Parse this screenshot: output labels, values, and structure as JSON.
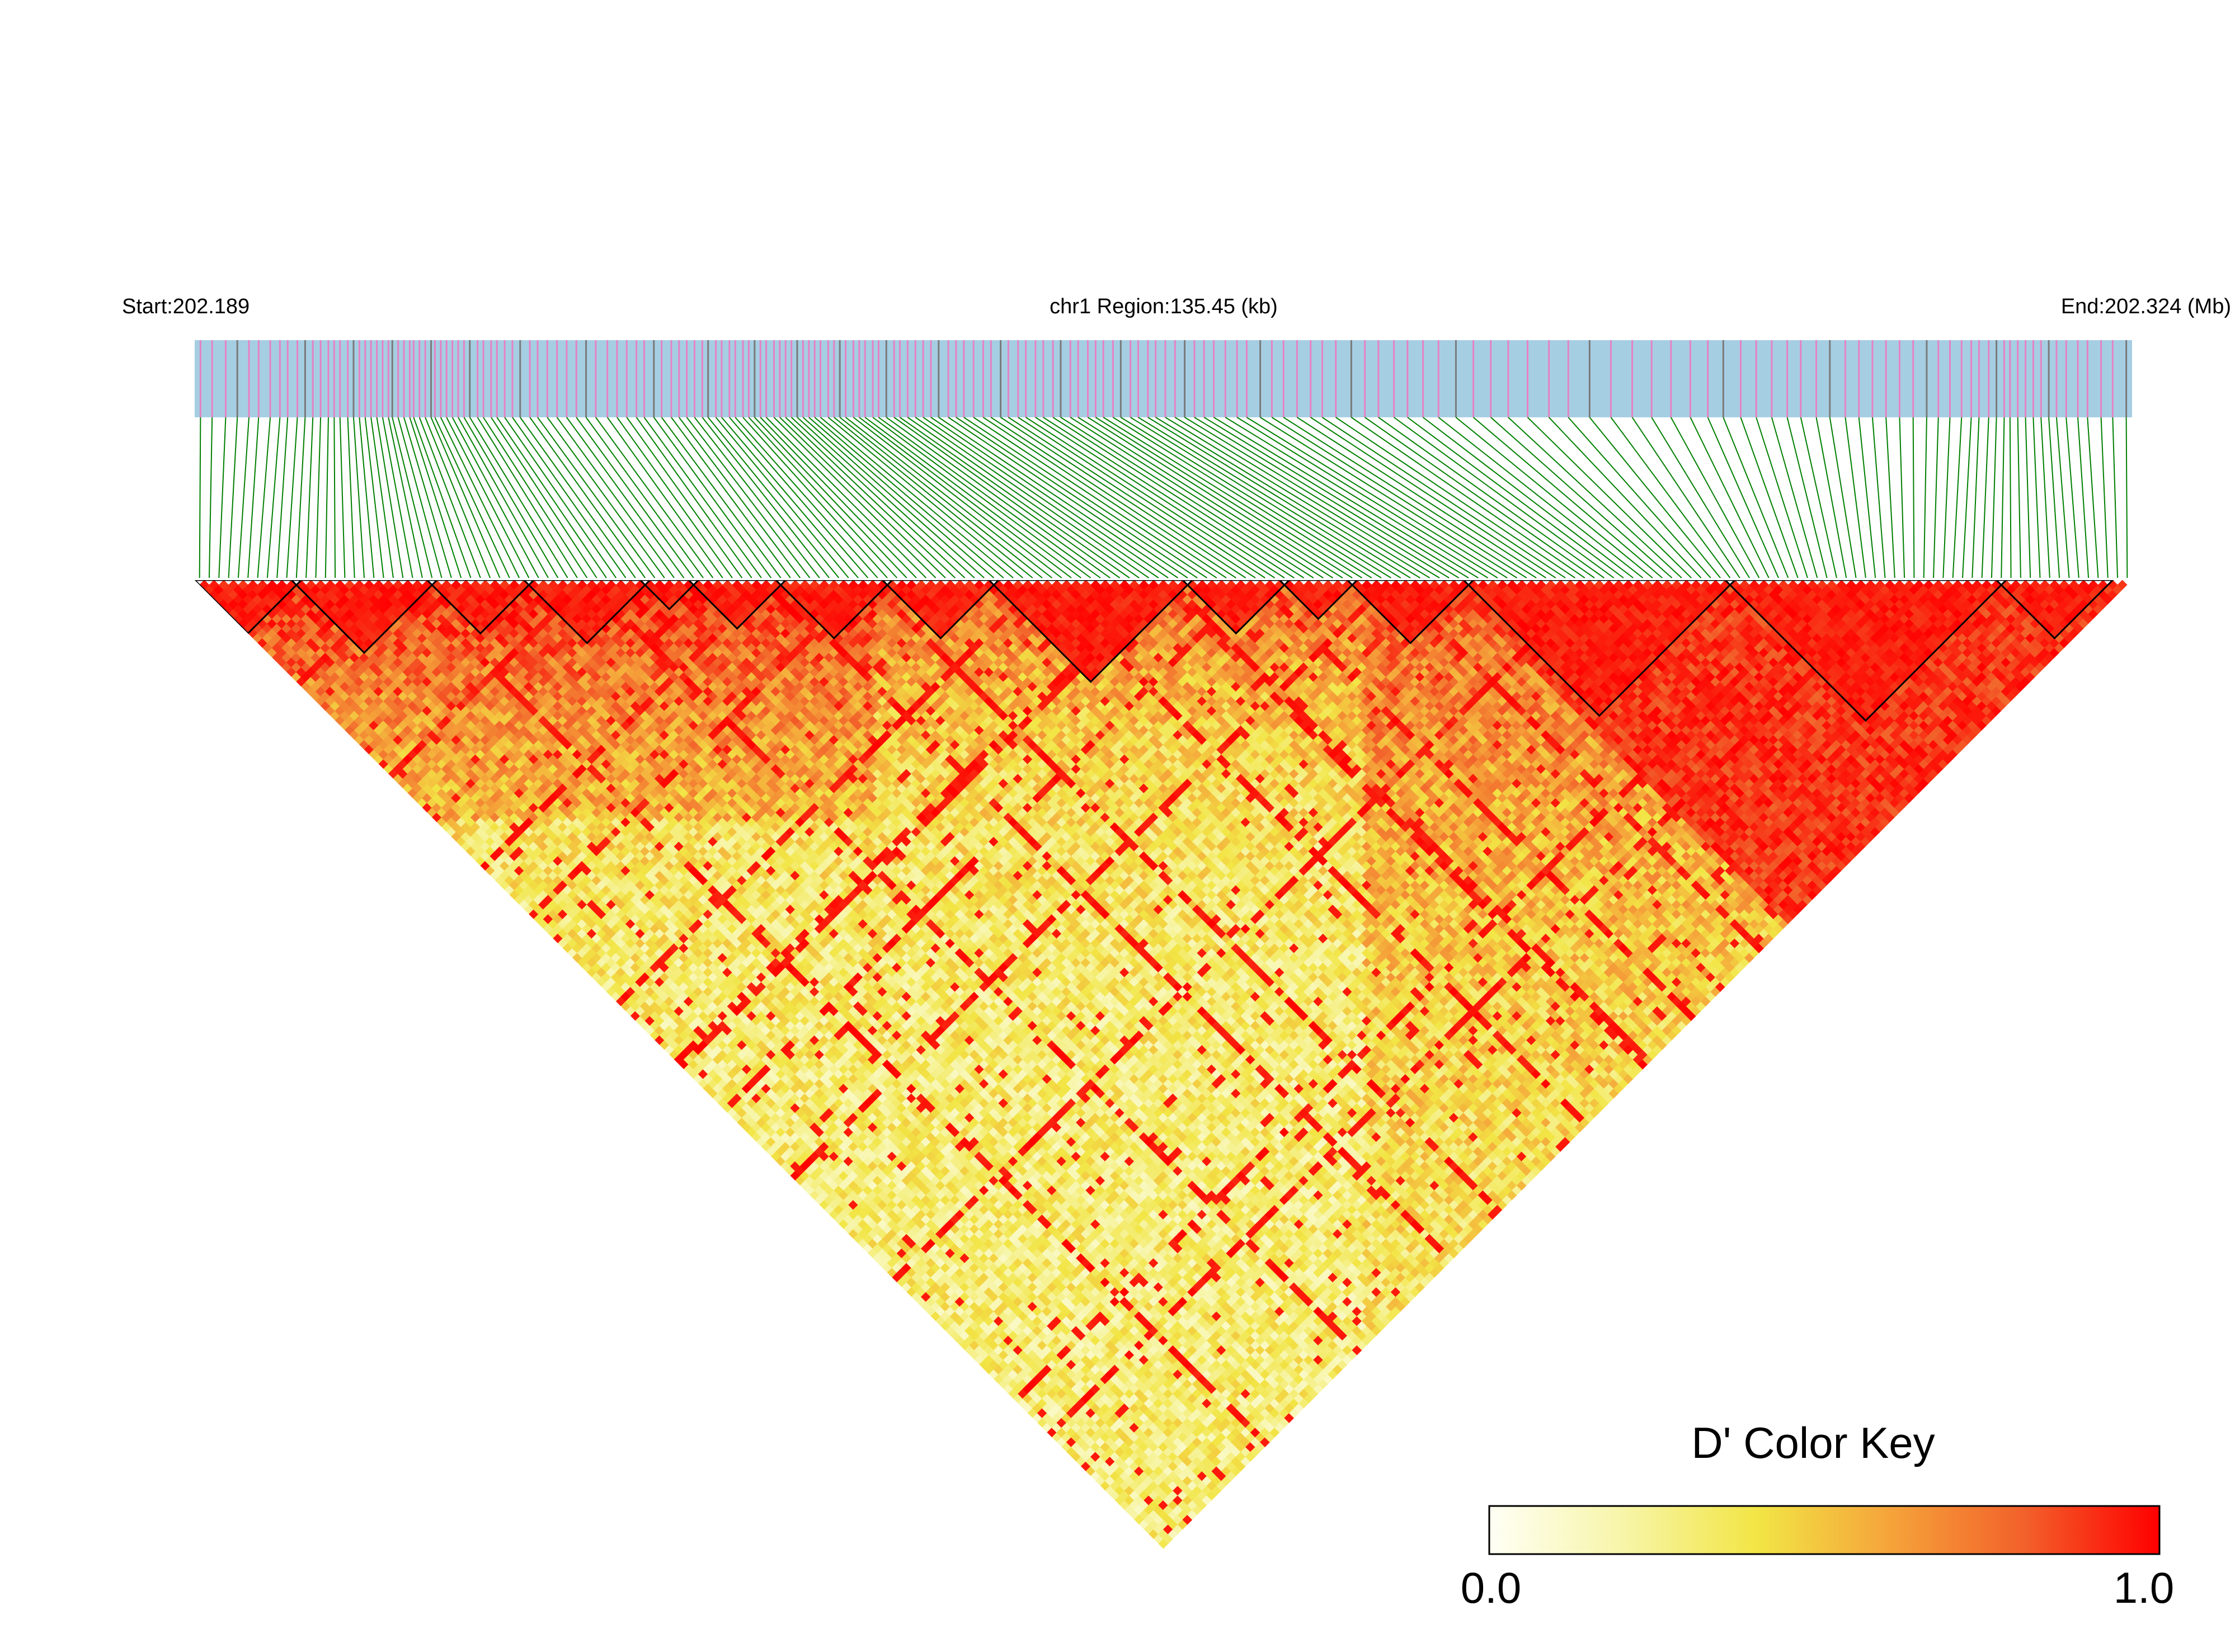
{
  "header": {
    "start_label": "Start:202.189",
    "region_label": "chr1 Region:135.45 (kb)",
    "end_label": "End:202.324 (Mb)"
  },
  "color_key": {
    "title": "D' Color Key",
    "min_label": "0.0",
    "max_label": "1.0",
    "stops": [
      "#fffff5",
      "#f7f5a8",
      "#f2e545",
      "#f5a33a",
      "#f2602a",
      "#ff0000"
    ]
  },
  "colors": {
    "track_background": "#a6cee3",
    "snp_tick_pink": "#e582c4",
    "snp_tick_gray": "#7a7a7a",
    "connector_lines": "#008000",
    "block_outline": "#000000"
  },
  "chart_data": {
    "type": "heatmap",
    "title": "",
    "chromosome": "chr1",
    "region_start_mb": 202.189,
    "region_end_mb": 202.324,
    "region_length_kb": 135.45,
    "color_scale": {
      "metric": "D'",
      "min": 0.0,
      "max": 1.0
    },
    "ld_blocks_fraction_of_region": [
      [
        0.0,
        0.048
      ],
      [
        0.048,
        0.122
      ],
      [
        0.122,
        0.17
      ],
      [
        0.17,
        0.232
      ],
      [
        0.232,
        0.258
      ],
      [
        0.258,
        0.3
      ],
      [
        0.3,
        0.355
      ],
      [
        0.355,
        0.41
      ],
      [
        0.41,
        0.515
      ],
      [
        0.515,
        0.562
      ],
      [
        0.562,
        0.6
      ],
      [
        0.6,
        0.66
      ],
      [
        0.66,
        0.795
      ],
      [
        0.795,
        0.935
      ],
      [
        0.935,
        0.99
      ]
    ]
  }
}
